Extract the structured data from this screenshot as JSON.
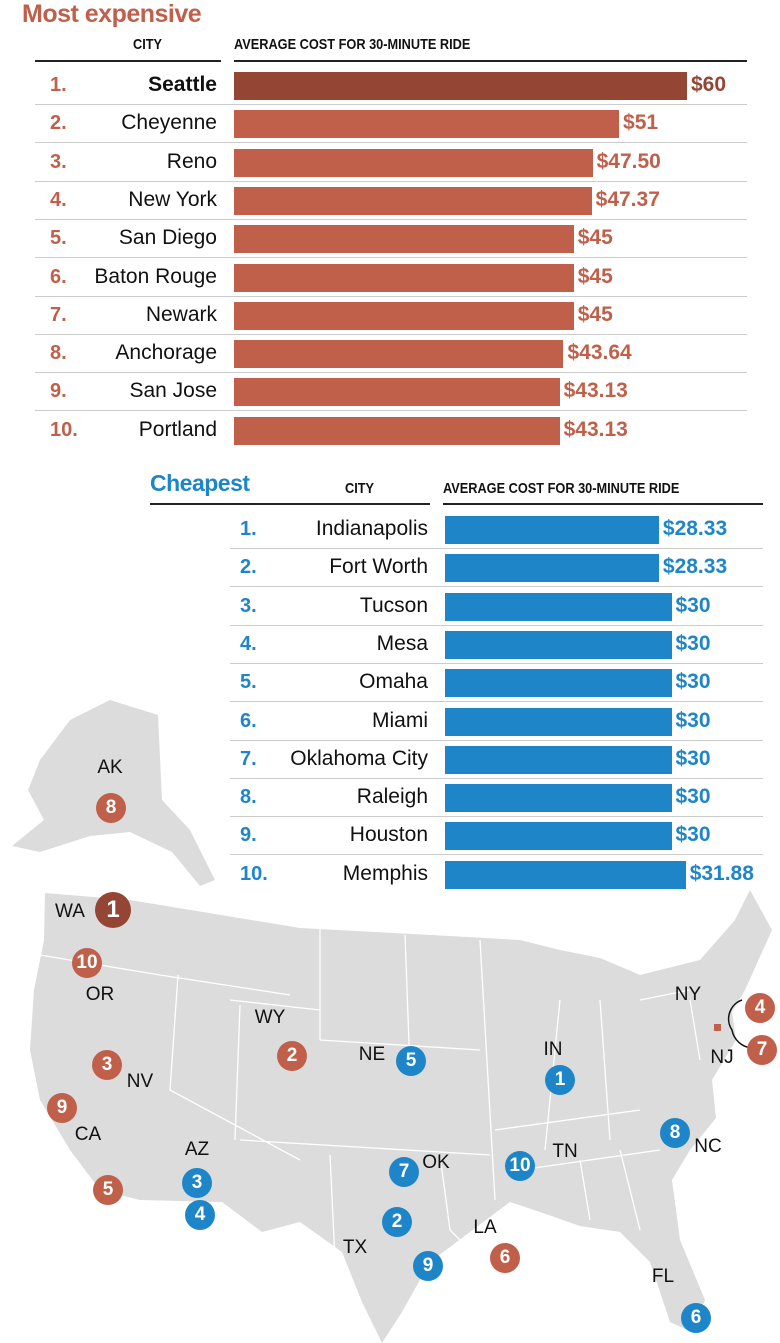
{
  "colors": {
    "expensive": "#c0604a",
    "top": "#944533",
    "cheap": "#1e86c8",
    "map": "#dcdcdd"
  },
  "chart_data": [
    {
      "type": "bar",
      "orientation": "horizontal",
      "title": "Most expensive",
      "category_header": "CITY",
      "value_header": "AVERAGE COST FOR 30-MINUTE RIDE",
      "categories": [
        "Seattle",
        "Cheyenne",
        "Reno",
        "New York",
        "San Diego",
        "Baton Rouge",
        "Newark",
        "Anchorage",
        "San Jose",
        "Portland"
      ],
      "ranks": [
        "1.",
        "2.",
        "3.",
        "4.",
        "5.",
        "6.",
        "7.",
        "8.",
        "9.",
        "10."
      ],
      "values": [
        60,
        51,
        47.5,
        47.37,
        45,
        45,
        45,
        43.64,
        43.13,
        43.13
      ],
      "labels": [
        "$60",
        "$51",
        "$47.50",
        "$47.37",
        "$45",
        "$45",
        "$45",
        "$43.64",
        "$43.13",
        "$43.13"
      ]
    },
    {
      "type": "bar",
      "orientation": "horizontal",
      "title": "Cheapest",
      "category_header": "CITY",
      "value_header": "AVERAGE COST FOR 30-MINUTE RIDE",
      "categories": [
        "Indianapolis",
        "Fort Worth",
        "Tucson",
        "Mesa",
        "Omaha",
        "Miami",
        "Oklahoma City",
        "Raleigh",
        "Houston",
        "Memphis"
      ],
      "ranks": [
        "1.",
        "2.",
        "3.",
        "4.",
        "5.",
        "6.",
        "7.",
        "8.",
        "9.",
        "10."
      ],
      "values": [
        28.33,
        28.33,
        30,
        30,
        30,
        30,
        30,
        30,
        30,
        31.88
      ],
      "labels": [
        "$28.33",
        "$28.33",
        "$30",
        "$30",
        "$30",
        "$30",
        "$30",
        "$30",
        "$30",
        "$31.88"
      ]
    }
  ],
  "map": {
    "states": [
      "AK",
      "WA",
      "OR",
      "WY",
      "NV",
      "CA",
      "NE",
      "IN",
      "AZ",
      "OK",
      "TN",
      "NC",
      "TX",
      "LA",
      "FL",
      "NY",
      "NJ"
    ],
    "markers": {
      "WA": "1",
      "OR": "10",
      "WY": "2",
      "NV": "3",
      "CA9": "9",
      "CA5": "5",
      "LA": "6",
      "NY": "4",
      "NJ": "7",
      "AK": "8",
      "NE": "5",
      "IN": "1",
      "AZ3": "3",
      "AZ4": "4",
      "OK": "7",
      "TN": "10",
      "NC": "8",
      "TX2": "2",
      "TX9": "9",
      "FL": "6"
    }
  }
}
